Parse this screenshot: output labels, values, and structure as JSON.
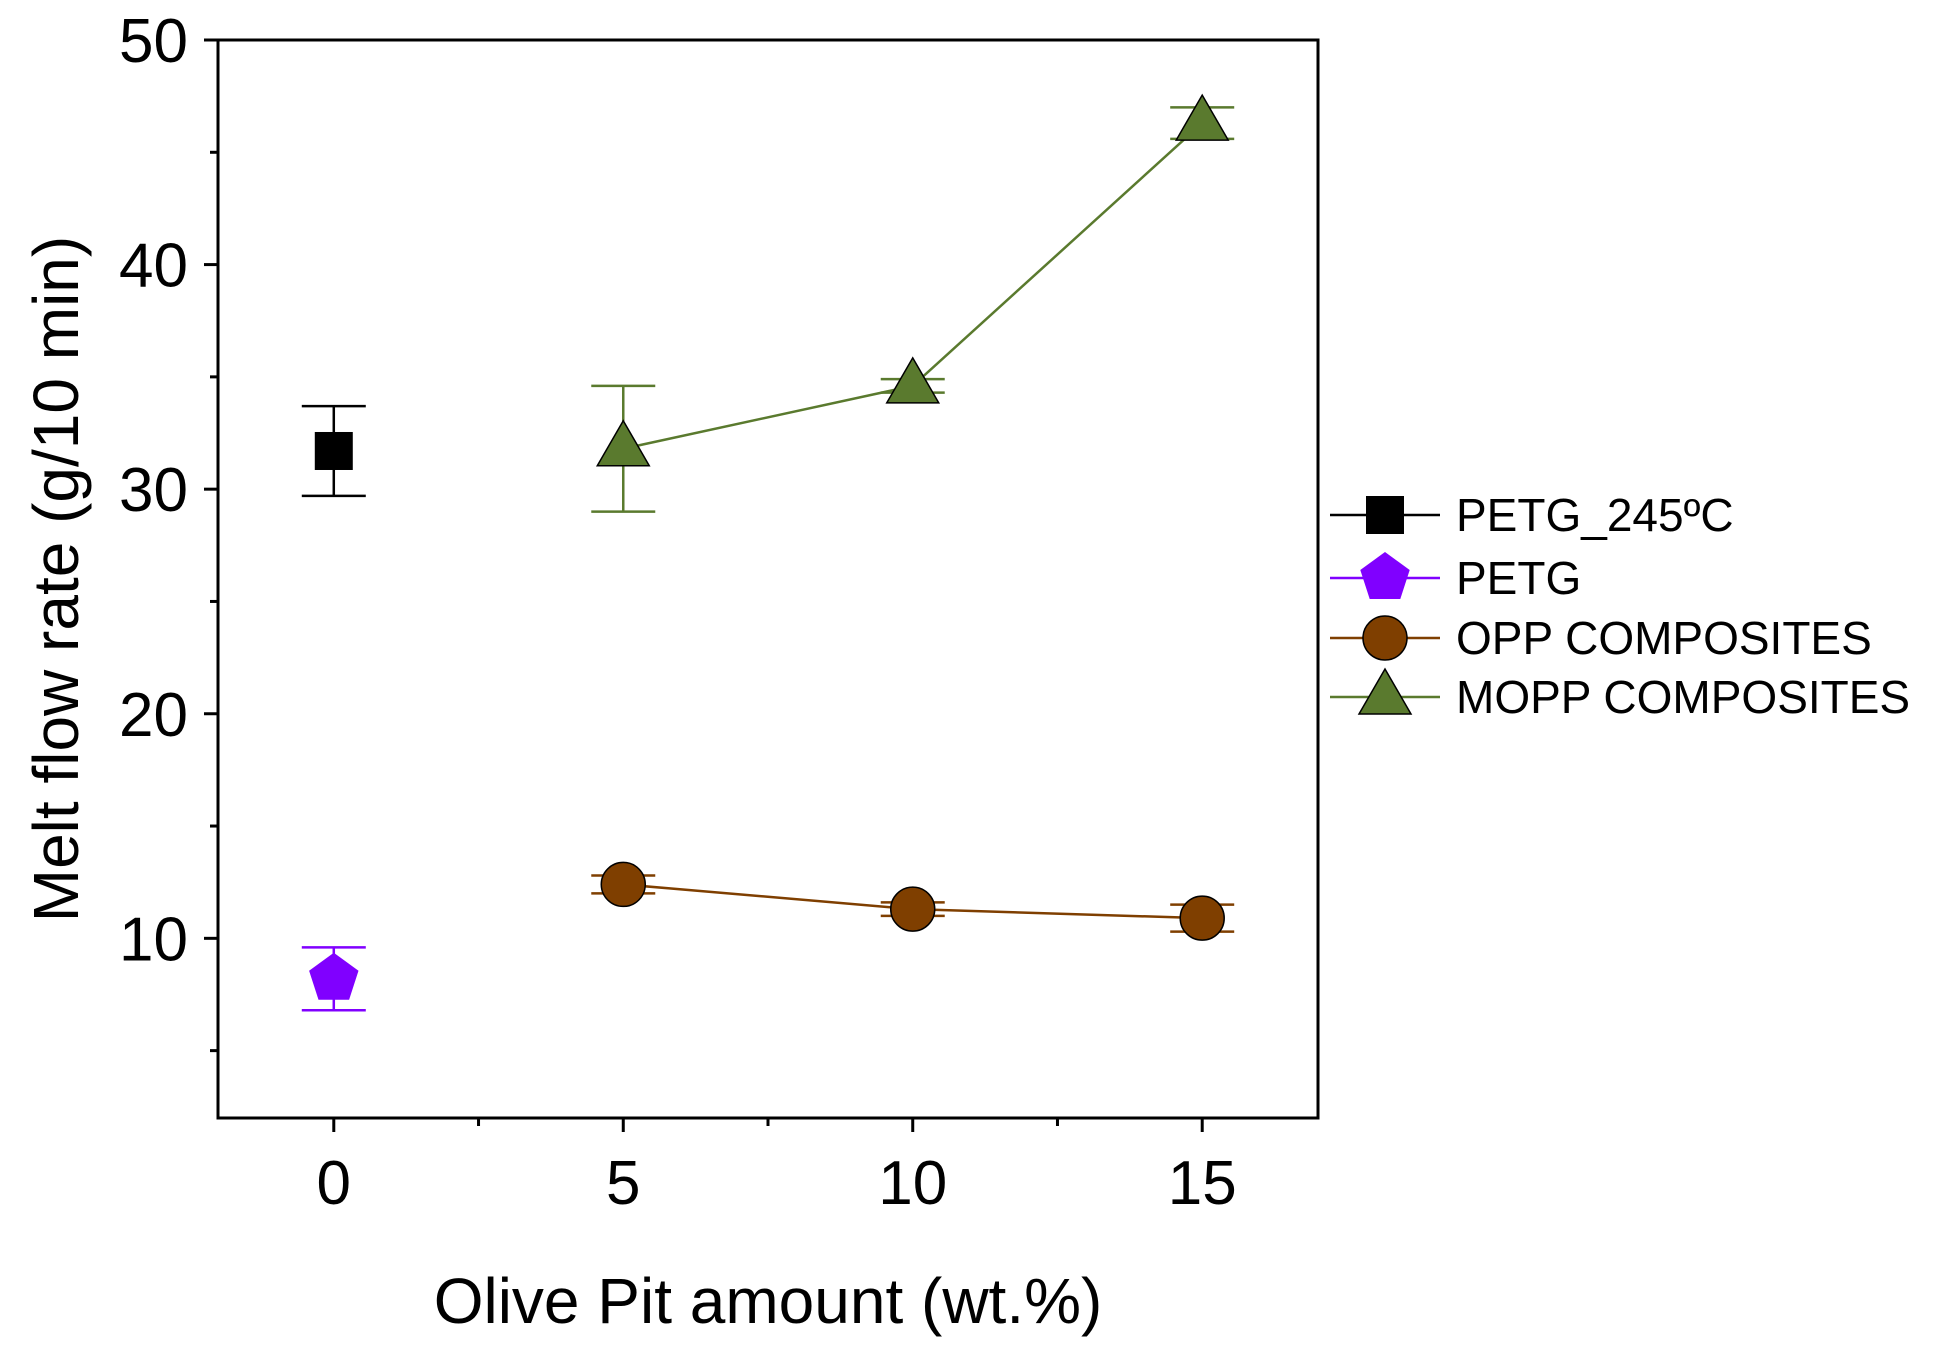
{
  "chart_data": {
    "type": "scatter",
    "title": "",
    "xlabel": "Olive Pit amount (wt.%)",
    "ylabel": "Melt flow rate (g/10 min)",
    "xlim": [
      -2,
      17
    ],
    "ylim": [
      2,
      50
    ],
    "x_ticks": [
      0,
      5,
      10,
      15
    ],
    "x_minor_ticks": [
      2.5,
      7.5,
      12.5
    ],
    "y_ticks": [
      10,
      20,
      30,
      40,
      50
    ],
    "y_minor_ticks": [
      5,
      15,
      25,
      35,
      45
    ],
    "grid": false,
    "legend_position": "right",
    "series": [
      {
        "name": "PETG_245ºC",
        "marker": "square",
        "color": "#000000",
        "points": [
          {
            "x": 0,
            "y": 31.7,
            "err": 2.0
          }
        ]
      },
      {
        "name": "PETG",
        "marker": "pentagon",
        "color": "#8000ff",
        "points": [
          {
            "x": 0,
            "y": 8.2,
            "err": 1.4
          }
        ]
      },
      {
        "name": "OPP COMPOSITES",
        "marker": "circle",
        "color": "#7f3f00",
        "points": [
          {
            "x": 5,
            "y": 12.4,
            "err": 0.4
          },
          {
            "x": 10,
            "y": 11.3,
            "err": 0.3
          },
          {
            "x": 15,
            "y": 10.9,
            "err": 0.6
          }
        ]
      },
      {
        "name": "MOPP COMPOSITES",
        "marker": "triangle",
        "color": "#5a7a2e",
        "points": [
          {
            "x": 5,
            "y": 31.8,
            "err": 2.8
          },
          {
            "x": 10,
            "y": 34.6,
            "err": 0.3
          },
          {
            "x": 15,
            "y": 46.3,
            "err": 0.7
          }
        ]
      }
    ]
  }
}
